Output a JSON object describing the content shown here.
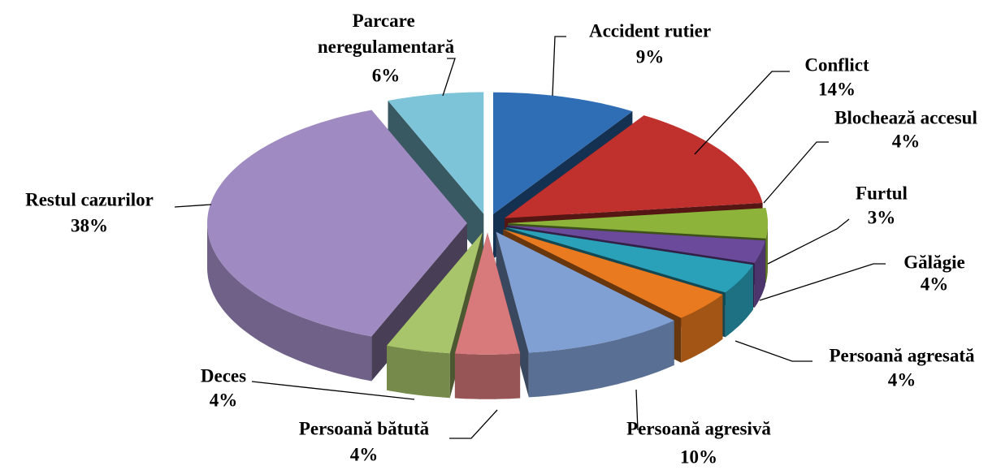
{
  "chart_data": {
    "type": "pie3d",
    "categories": [
      "Accident rutier",
      "Conflict",
      "Blochează accesul",
      "Furtul",
      "Gălăgie",
      "Persoană agresată",
      "Persoană agresivă",
      "Persoană bătută",
      "Deces",
      "Restul cazurilor",
      "Parcare neregulamentară"
    ],
    "values": [
      9,
      14,
      4,
      3,
      4,
      4,
      10,
      4,
      4,
      38,
      6
    ],
    "value_labels": [
      "9%",
      "14%",
      "4%",
      "3%",
      "4%",
      "4%",
      "10%",
      "4%",
      "4%",
      "38%",
      "6%"
    ],
    "colors": [
      "#2f6db5",
      "#c0302d",
      "#8db33b",
      "#6c4a9b",
      "#2aa1b9",
      "#e97a1f",
      "#809fd3",
      "#d87a7b",
      "#a9c56b",
      "#9f8bc1",
      "#7dc4d9"
    ]
  }
}
